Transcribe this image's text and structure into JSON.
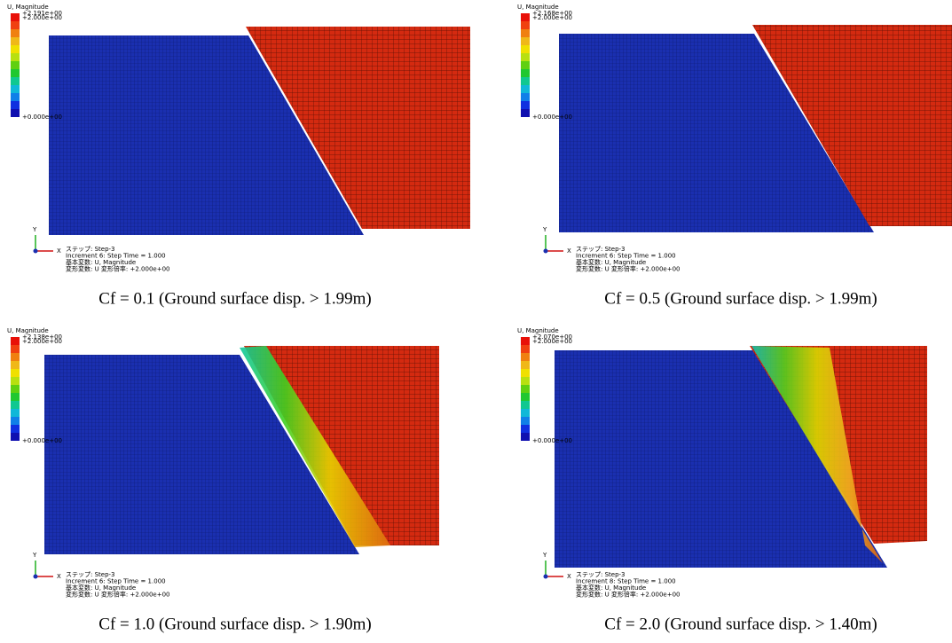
{
  "panels": [
    {
      "legend": {
        "title": "U, Magnitude",
        "labels": [
          "+2.191e+00",
          "+2.000e+00",
          "+0.000e+00"
        ]
      },
      "axis": {
        "y": "Y",
        "x": "X"
      },
      "info": [
        "ステップ: Step-3",
        "Increment    6: Step Time =    1.000",
        "基本変数: U, Magnitude",
        "変形変数: U   変形倍率: +2.000e+00"
      ],
      "caption": "Cf = 0.1 (Ground surface disp. > 1.99m)"
    },
    {
      "legend": {
        "title": "U, Magnitude",
        "labels": [
          "+2.168e+00",
          "+2.000e+00",
          "+0.000e+00"
        ]
      },
      "axis": {
        "y": "Y",
        "x": "X"
      },
      "info": [
        "ステップ: Step-3",
        "Increment    6: Step Time =    1.000",
        "基本変数: U, Magnitude",
        "変形変数: U   変形倍率: +2.000e+00"
      ],
      "caption": "Cf = 0.5 (Ground surface disp. > 1.99m)"
    },
    {
      "legend": {
        "title": "U, Magnitude",
        "labels": [
          "+2.138e+00",
          "+2.000e+00",
          "+0.000e+00"
        ]
      },
      "axis": {
        "y": "Y",
        "x": "X"
      },
      "info": [
        "ステップ: Step-3",
        "Increment    6: Step Time =    1.000",
        "基本変数: U, Magnitude",
        "変形変数: U   変形倍率: +2.000e+00"
      ],
      "caption": "Cf = 1.0 (Ground surface disp. > 1.90m)"
    },
    {
      "legend": {
        "title": "U, Magnitude",
        "labels": [
          "+2.070e+00",
          "+2.000e+00",
          "+0.000e+00"
        ]
      },
      "axis": {
        "y": "Y",
        "x": "X"
      },
      "info": [
        "ステップ: Step-3",
        "Increment    8: Step Time =    1.000",
        "基本変数: U, Magnitude",
        "変形変数: U   変形倍率: +2.000e+00"
      ],
      "caption": "Cf = 2.0 (Ground surface disp. > 1.40m)"
    }
  ]
}
